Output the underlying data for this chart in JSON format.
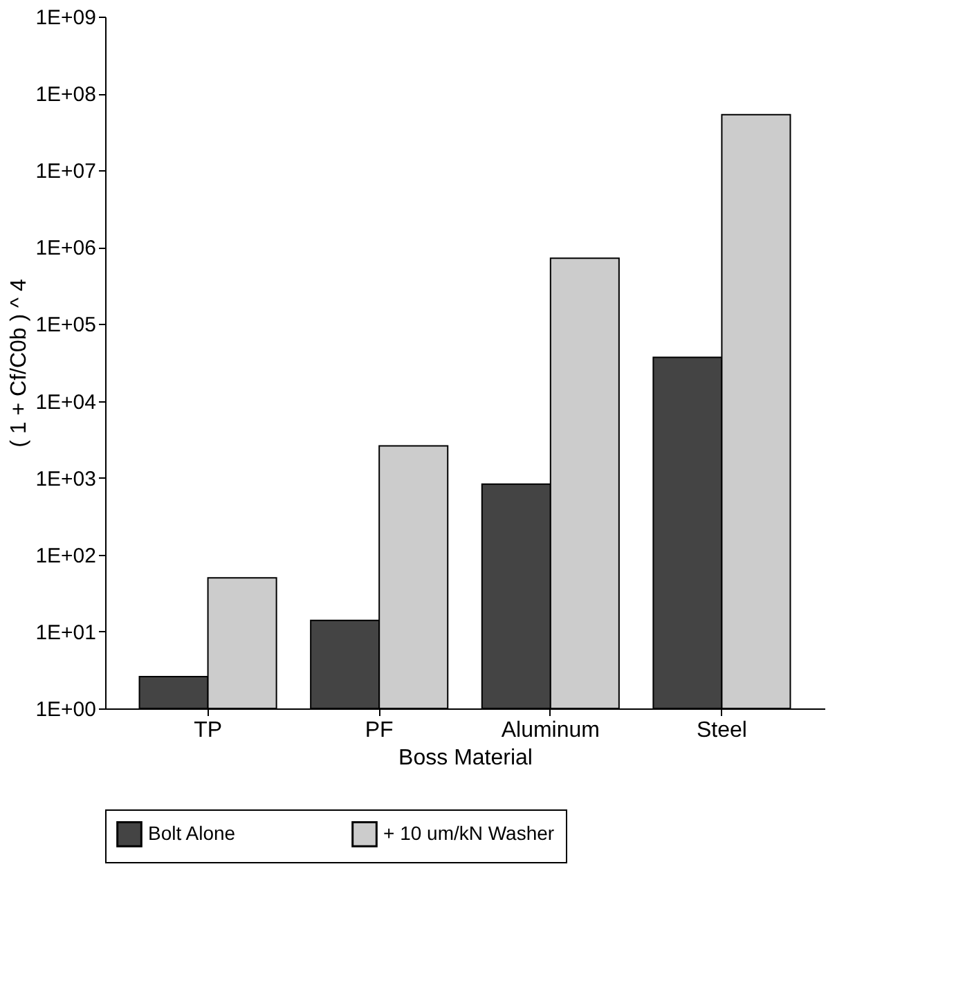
{
  "chart_data": {
    "type": "bar",
    "xlabel": "Boss Material",
    "ylabel": "( 1 + Cf/C0b ) ^ 4",
    "categories": [
      "TP",
      "PF",
      "Aluminum",
      "Steel"
    ],
    "series": [
      {
        "name": "Bolt Alone",
        "color": "#444444",
        "values": [
          2.6,
          14,
          830,
          37000
        ]
      },
      {
        "name": "+ 10 um/kN Washer",
        "color": "#cccccc",
        "values": [
          50,
          2600,
          720000,
          53000000
        ]
      }
    ],
    "log": true,
    "ylim": [
      1,
      1000000000
    ],
    "yticks": [
      {
        "value": 1,
        "label": "1E+00"
      },
      {
        "value": 10,
        "label": "1E+01"
      },
      {
        "value": 100,
        "label": "1E+02"
      },
      {
        "value": 1000,
        "label": "1E+03"
      },
      {
        "value": 10000,
        "label": "1E+04"
      },
      {
        "value": 100000,
        "label": "1E+05"
      },
      {
        "value": 1000000,
        "label": "1E+06"
      },
      {
        "value": 10000000,
        "label": "1E+07"
      },
      {
        "value": 100000000,
        "label": "1E+08"
      },
      {
        "value": 1000000000,
        "label": "1E+09"
      }
    ],
    "grid": false,
    "legend": "bottom"
  }
}
